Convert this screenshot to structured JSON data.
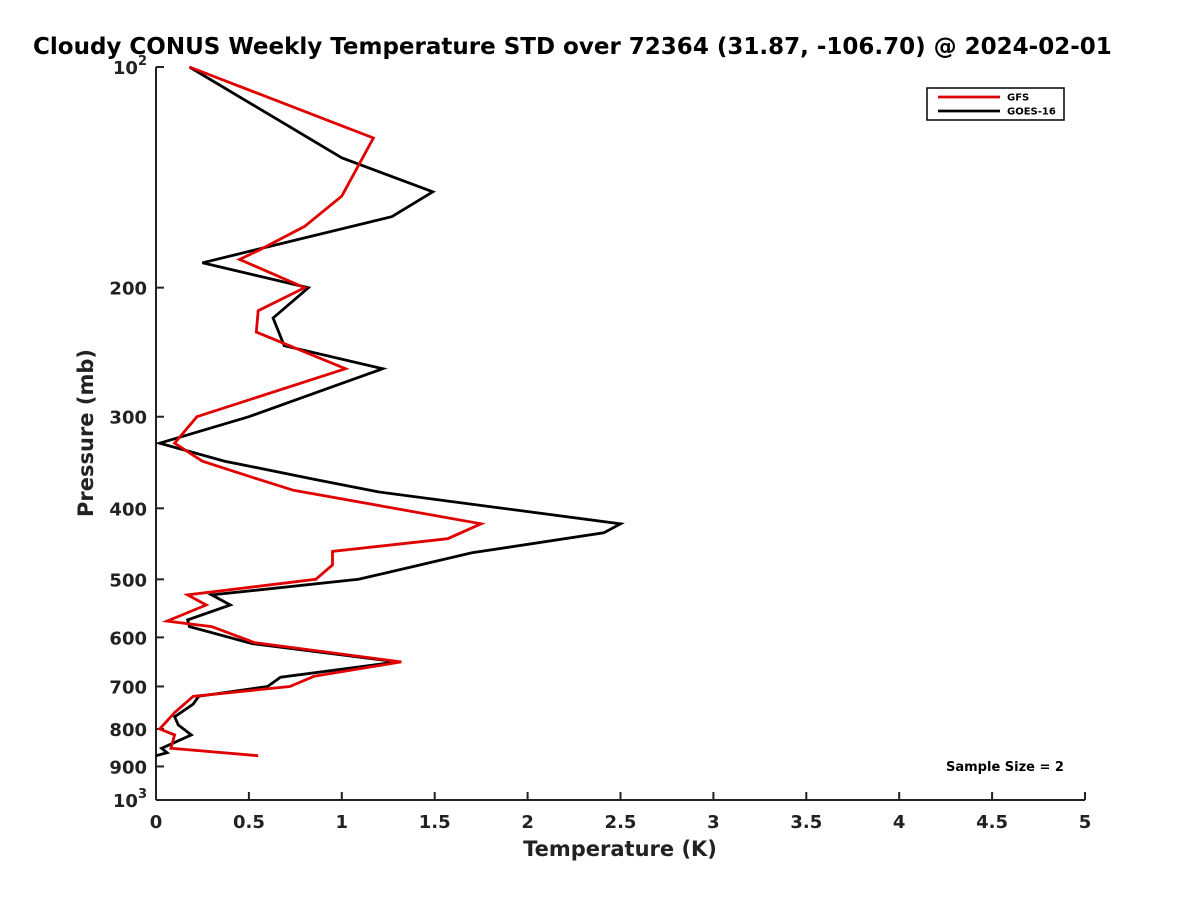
{
  "chart_data": {
    "type": "line",
    "title": "Cloudy CONUS Weekly Temperature STD over 72364 (31.87, -106.70) @ 2024-02-01",
    "xlabel": "Temperature (K)",
    "ylabel": "Pressure (mb)",
    "xlim": [
      0,
      5
    ],
    "ylim": [
      100,
      1000
    ],
    "yscale": "log",
    "y_reversed": true,
    "grid": false,
    "legend_position": "top-right",
    "x_ticks": [
      0,
      0.5,
      1,
      1.5,
      2,
      2.5,
      3,
      3.5,
      4,
      4.5,
      5
    ],
    "x_tick_labels": [
      "0",
      "0.5",
      "1",
      "1.5",
      "2",
      "2.5",
      "3",
      "3.5",
      "4",
      "4.5",
      "5"
    ],
    "y_ticks": [
      100,
      200,
      300,
      400,
      500,
      600,
      700,
      800,
      900,
      1000
    ],
    "y_tick_labels": [
      {
        "base": "10",
        "exp": "2"
      },
      {
        "base": "200",
        "exp": ""
      },
      {
        "base": "300",
        "exp": ""
      },
      {
        "base": "400",
        "exp": ""
      },
      {
        "base": "500",
        "exp": ""
      },
      {
        "base": "600",
        "exp": ""
      },
      {
        "base": "700",
        "exp": ""
      },
      {
        "base": "800",
        "exp": ""
      },
      {
        "base": "900",
        "exp": ""
      },
      {
        "base": "10",
        "exp": "3"
      }
    ],
    "annotation": "Sample Size = 2",
    "series": [
      {
        "name": "GFS",
        "color": "#e00000",
        "points": [
          [
            0.18,
            100
          ],
          [
            1.17,
            125
          ],
          [
            1.0,
            150
          ],
          [
            0.8,
            165
          ],
          [
            0.55,
            178
          ],
          [
            0.45,
            183
          ],
          [
            0.8,
            200
          ],
          [
            0.55,
            215
          ],
          [
            0.54,
            230
          ],
          [
            1.02,
            258
          ],
          [
            0.22,
            300
          ],
          [
            0.1,
            326
          ],
          [
            0.25,
            345
          ],
          [
            0.55,
            365
          ],
          [
            0.74,
            378
          ],
          [
            1.75,
            420
          ],
          [
            1.57,
            440
          ],
          [
            0.95,
            458
          ],
          [
            0.95,
            478
          ],
          [
            0.86,
            500
          ],
          [
            0.17,
            525
          ],
          [
            0.27,
            542
          ],
          [
            0.06,
            570
          ],
          [
            0.3,
            580
          ],
          [
            0.53,
            610
          ],
          [
            1.32,
            648
          ],
          [
            0.85,
            678
          ],
          [
            0.72,
            700
          ],
          [
            0.2,
            722
          ],
          [
            0.1,
            760
          ],
          [
            0.02,
            800
          ],
          [
            0.1,
            815
          ],
          [
            0.08,
            850
          ],
          [
            0.55,
            870
          ]
        ]
      },
      {
        "name": "GOES-16",
        "color": "#000000",
        "points": [
          [
            0.18,
            100
          ],
          [
            1.0,
            133
          ],
          [
            1.49,
            148
          ],
          [
            1.27,
            160
          ],
          [
            0.25,
            185
          ],
          [
            0.82,
            200
          ],
          [
            0.63,
            220
          ],
          [
            0.69,
            240
          ],
          [
            1.22,
            258
          ],
          [
            0.5,
            300
          ],
          [
            0.02,
            326
          ],
          [
            0.37,
            345
          ],
          [
            0.85,
            365
          ],
          [
            1.2,
            380
          ],
          [
            2.5,
            420
          ],
          [
            2.41,
            432
          ],
          [
            1.7,
            460
          ],
          [
            1.42,
            478
          ],
          [
            1.09,
            500
          ],
          [
            0.3,
            525
          ],
          [
            0.4,
            542
          ],
          [
            0.17,
            568
          ],
          [
            0.18,
            580
          ],
          [
            0.52,
            612
          ],
          [
            1.3,
            648
          ],
          [
            0.67,
            680
          ],
          [
            0.6,
            700
          ],
          [
            0.23,
            722
          ],
          [
            0.2,
            740
          ],
          [
            0.1,
            770
          ],
          [
            0.12,
            790
          ],
          [
            0.19,
            815
          ],
          [
            0.03,
            850
          ],
          [
            0.06,
            862
          ],
          [
            0.0,
            870
          ]
        ]
      }
    ]
  }
}
